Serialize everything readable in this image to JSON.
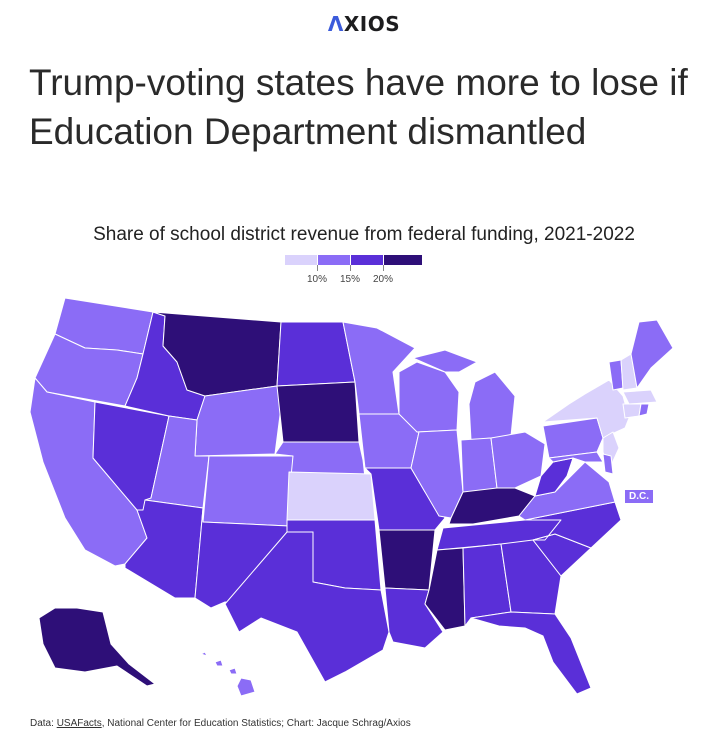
{
  "brand": {
    "name": "AXIOS",
    "mark": "Λ",
    "rest": "XIOS"
  },
  "headline": "Trump-voting states have more to lose if Education Department dismantled",
  "subtitle": "Share of school district revenue from federal funding, 2021-2022",
  "legend": {
    "colors": [
      "#dad2fc",
      "#8b6cf6",
      "#5a2fd8",
      "#2e0f78"
    ],
    "ticks": [
      "10%",
      "15%",
      "20%"
    ]
  },
  "dc_label": "D.C.",
  "footer": {
    "prefix": "Data: ",
    "link": "USAFacts",
    "rest": ", National Center for Education Statistics; Chart: Jacque Schrag/Axios"
  },
  "chart_data": {
    "type": "map",
    "title": "Share of school district revenue from federal funding, 2021-2022",
    "bins": [
      {
        "range": "under 10%",
        "color": "#dad2fc"
      },
      {
        "range": "10%-15%",
        "color": "#8b6cf6"
      },
      {
        "range": "15%-20%",
        "color": "#5a2fd8"
      },
      {
        "range": "20% and up",
        "color": "#2e0f78"
      }
    ],
    "states": [
      {
        "state": "WA",
        "bin": 1
      },
      {
        "state": "OR",
        "bin": 1
      },
      {
        "state": "CA",
        "bin": 1
      },
      {
        "state": "NV",
        "bin": 2
      },
      {
        "state": "ID",
        "bin": 2
      },
      {
        "state": "MT",
        "bin": 3
      },
      {
        "state": "WY",
        "bin": 1
      },
      {
        "state": "UT",
        "bin": 1
      },
      {
        "state": "CO",
        "bin": 1
      },
      {
        "state": "AZ",
        "bin": 2
      },
      {
        "state": "NM",
        "bin": 2
      },
      {
        "state": "ND",
        "bin": 2
      },
      {
        "state": "SD",
        "bin": 3
      },
      {
        "state": "NE",
        "bin": 1
      },
      {
        "state": "KS",
        "bin": 0
      },
      {
        "state": "OK",
        "bin": 2
      },
      {
        "state": "TX",
        "bin": 2
      },
      {
        "state": "MN",
        "bin": 1
      },
      {
        "state": "IA",
        "bin": 1
      },
      {
        "state": "MO",
        "bin": 2
      },
      {
        "state": "AR",
        "bin": 3
      },
      {
        "state": "LA",
        "bin": 2
      },
      {
        "state": "WI",
        "bin": 1
      },
      {
        "state": "IL",
        "bin": 1
      },
      {
        "state": "MI",
        "bin": 1
      },
      {
        "state": "IN",
        "bin": 1
      },
      {
        "state": "OH",
        "bin": 1
      },
      {
        "state": "KY",
        "bin": 3
      },
      {
        "state": "TN",
        "bin": 2
      },
      {
        "state": "MS",
        "bin": 3
      },
      {
        "state": "AL",
        "bin": 2
      },
      {
        "state": "GA",
        "bin": 2
      },
      {
        "state": "FL",
        "bin": 2
      },
      {
        "state": "SC",
        "bin": 2
      },
      {
        "state": "NC",
        "bin": 2
      },
      {
        "state": "VA",
        "bin": 1
      },
      {
        "state": "WV",
        "bin": 2
      },
      {
        "state": "PA",
        "bin": 1
      },
      {
        "state": "NY",
        "bin": 0
      },
      {
        "state": "VT",
        "bin": 1
      },
      {
        "state": "NH",
        "bin": 0
      },
      {
        "state": "ME",
        "bin": 1
      },
      {
        "state": "MA",
        "bin": 0
      },
      {
        "state": "CT",
        "bin": 0
      },
      {
        "state": "RI",
        "bin": 1
      },
      {
        "state": "NJ",
        "bin": 0
      },
      {
        "state": "DE",
        "bin": 1
      },
      {
        "state": "MD",
        "bin": 1
      },
      {
        "state": "DC",
        "bin": 1
      },
      {
        "state": "AK",
        "bin": 3
      },
      {
        "state": "HI",
        "bin": 1
      }
    ]
  }
}
